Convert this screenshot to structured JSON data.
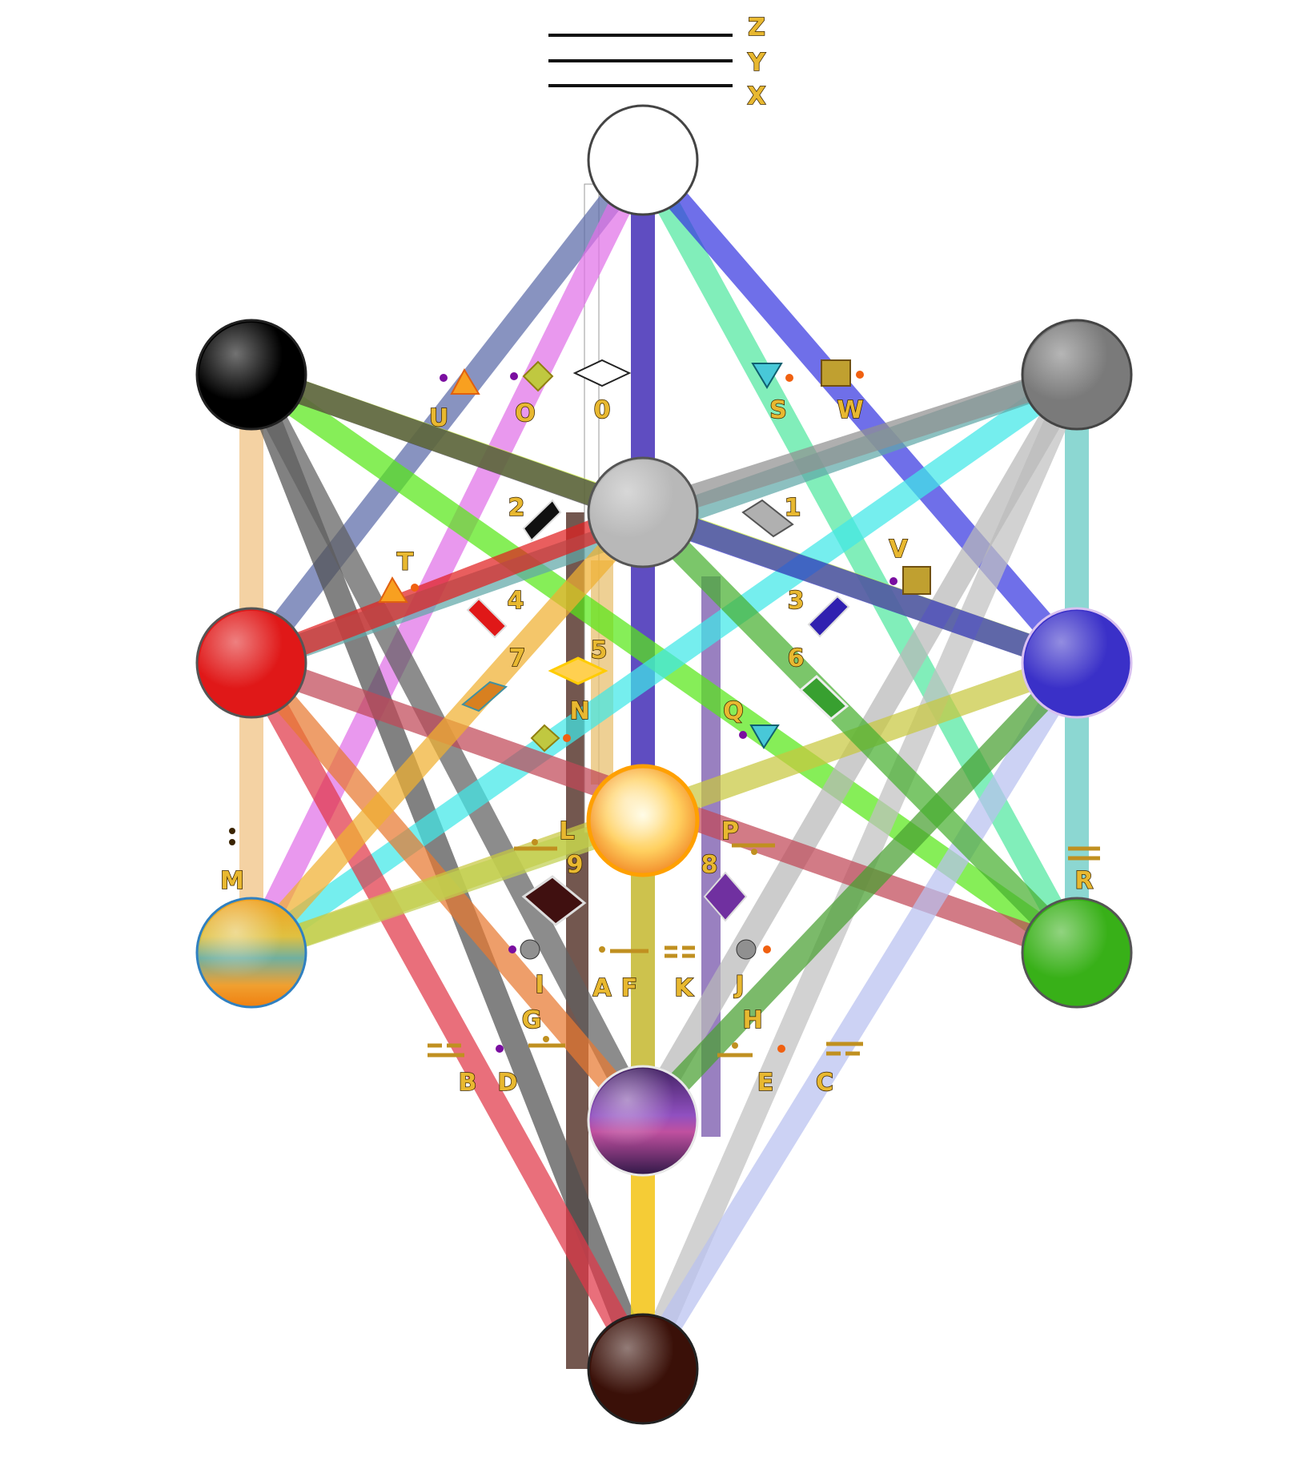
{
  "top_lines": {
    "labels": [
      "Z",
      "Y",
      "X"
    ]
  },
  "nodes": [
    {
      "id": "kether",
      "color": "#ffffff"
    },
    {
      "id": "binah",
      "color": "#000000"
    },
    {
      "id": "chokmah",
      "color": "#7a7a7a"
    },
    {
      "id": "daath",
      "color": "#b8b8b8"
    },
    {
      "id": "geburah",
      "color": "#e01818"
    },
    {
      "id": "chesed",
      "color": "#3a30c8"
    },
    {
      "id": "tiphareth",
      "color": "#ffd040"
    },
    {
      "id": "hod",
      "color": "#f0a020"
    },
    {
      "id": "netzach",
      "color": "#38b018"
    },
    {
      "id": "yesod",
      "color": "#6a30a0"
    },
    {
      "id": "malkuth",
      "color": "#3a1008"
    }
  ],
  "paths": [
    {
      "from": "kether",
      "to": "geburah",
      "color": "#5a6aa8"
    },
    {
      "from": "kether",
      "to": "hod",
      "color": "#e070e8"
    },
    {
      "from": "kether",
      "to": "malkuth",
      "color": "#e83838"
    },
    {
      "from": "kether",
      "to": "yesod",
      "color": "#2840e0"
    },
    {
      "from": "kether",
      "to": "netzach",
      "color": "#50e8a0"
    },
    {
      "from": "kether",
      "to": "chesed",
      "color": "#3838e0"
    },
    {
      "from": "binah",
      "to": "hod",
      "color": "#f0c080"
    },
    {
      "from": "binah",
      "to": "malkuth",
      "color": "#505050"
    },
    {
      "from": "binah",
      "to": "yesod",
      "color": "#606060"
    },
    {
      "from": "binah",
      "to": "netzach",
      "color": "#58e818"
    },
    {
      "from": "binah",
      "to": "chesed",
      "color": "#c8f030"
    },
    {
      "from": "binah",
      "to": "daath",
      "color": "#404040"
    },
    {
      "from": "chokmah",
      "to": "netzach",
      "color": "#60c8c0"
    },
    {
      "from": "chokmah",
      "to": "malkuth",
      "color": "#c0c0c0"
    },
    {
      "from": "chokmah",
      "to": "yesod",
      "color": "#b8b8b8"
    },
    {
      "from": "chokmah",
      "to": "hod",
      "color": "#40e8e8"
    },
    {
      "from": "chokmah",
      "to": "geburah",
      "color": "#60a8a8"
    },
    {
      "from": "chokmah",
      "to": "daath",
      "color": "#909090"
    },
    {
      "from": "geburah",
      "to": "malkuth",
      "color": "#e03848"
    },
    {
      "from": "geburah",
      "to": "yesod",
      "color": "#e87830"
    },
    {
      "from": "geburah",
      "to": "netzach",
      "color": "#c04858"
    },
    {
      "from": "geburah",
      "to": "daath",
      "color": "#e02020"
    },
    {
      "from": "chesed",
      "to": "malkuth",
      "color": "#b8c0f0"
    },
    {
      "from": "chesed",
      "to": "yesod",
      "color": "#48a030"
    },
    {
      "from": "chesed",
      "to": "hod",
      "color": "#c8c840"
    },
    {
      "from": "chesed",
      "to": "daath",
      "color": "#3030c0"
    },
    {
      "from": "hod",
      "to": "tiphareth",
      "color": "#c0d050"
    },
    {
      "from": "hod",
      "to": "daath",
      "color": "#f0b030"
    },
    {
      "from": "netzach",
      "to": "daath",
      "color": "#48b030"
    },
    {
      "from": "tiphareth",
      "to": "malkuth",
      "color": "#f8f020"
    }
  ],
  "diamonds": [
    {
      "num": "0",
      "color": "#ffffff"
    },
    {
      "num": "1",
      "color": "#a8a8a8"
    },
    {
      "num": "2",
      "color": "#101010"
    },
    {
      "num": "3",
      "color": "#3020b0"
    },
    {
      "num": "4",
      "color": "#e01818"
    },
    {
      "num": "5",
      "color": "#ffd050"
    },
    {
      "num": "6",
      "color": "#38a030"
    },
    {
      "num": "7",
      "color": "#d88020"
    },
    {
      "num": "8",
      "color": "#7030a0"
    },
    {
      "num": "9",
      "color": "#401010"
    }
  ],
  "letters": [
    "Z",
    "Y",
    "X",
    "U",
    "O",
    "S",
    "W",
    "T",
    "V",
    "N",
    "Q",
    "L",
    "P",
    "M",
    "R",
    "I",
    "A",
    "F",
    "K",
    "J",
    "G",
    "H",
    "B",
    "D",
    "E",
    "C"
  ]
}
